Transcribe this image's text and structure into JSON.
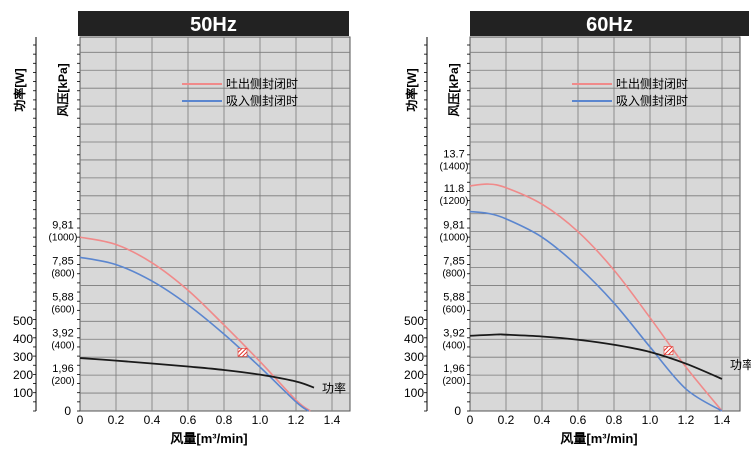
{
  "panels": [
    {
      "header": "50Hz",
      "power_axis_label": "功率[W]",
      "pressure_axis_label": "风压[kPa]",
      "x_axis_label": "风量[m³/min]",
      "power_ticks": [
        "500",
        "400",
        "300",
        "200",
        "100"
      ],
      "pressure_ticks": [
        {
          "v": 9.81,
          "label": "9,81",
          "sub": "(1000)"
        },
        {
          "v": 7.85,
          "label": "7,85",
          "sub": "(800)"
        },
        {
          "v": 5.88,
          "label": "5,88",
          "sub": "(600)"
        },
        {
          "v": 3.92,
          "label": "3,92",
          "sub": "(400)"
        },
        {
          "v": 1.96,
          "label": "1,96",
          "sub": "(200)"
        },
        {
          "v": 0,
          "label": "0",
          "sub": ""
        }
      ],
      "x_ticks": [
        "0",
        "0.2",
        "0.4",
        "0.6",
        "0.8",
        "1.0",
        "1.2",
        "1.4"
      ],
      "legend": {
        "red": "吐出侧封闭时",
        "blue": "吸入侧封闭时"
      },
      "power_label": "功率",
      "colors": {
        "red": "#f08a8a",
        "blue": "#5b86cf",
        "black": "#1a1a1a",
        "header_bg": "#222222",
        "plot_bg": "#d8d8d8"
      }
    },
    {
      "header": "60Hz",
      "power_axis_label": "功率[W]",
      "pressure_axis_label": "风压[kPa]",
      "x_axis_label": "风量[m³/min]",
      "power_ticks": [
        "500",
        "400",
        "300",
        "200",
        "100"
      ],
      "pressure_ticks": [
        {
          "v": 13.7,
          "label": "13.7",
          "sub": "(1400)"
        },
        {
          "v": 11.8,
          "label": "11.8",
          "sub": "(1200)"
        },
        {
          "v": 9.81,
          "label": "9,81",
          "sub": "(1000)"
        },
        {
          "v": 7.85,
          "label": "7,85",
          "sub": "(800)"
        },
        {
          "v": 5.88,
          "label": "5,88",
          "sub": "(600)"
        },
        {
          "v": 3.92,
          "label": "3,92",
          "sub": "(400)"
        },
        {
          "v": 1.96,
          "label": "1,96",
          "sub": "(200)"
        },
        {
          "v": 0,
          "label": "0",
          "sub": ""
        }
      ],
      "x_ticks": [
        "0",
        "0.2",
        "0.4",
        "0.6",
        "0.8",
        "1.0",
        "1.2",
        "1.4"
      ],
      "legend": {
        "red": "吐出侧封闭时",
        "blue": "吸入侧封闭时"
      },
      "power_label": "功率",
      "colors": {
        "red": "#f08a8a",
        "blue": "#5b86cf",
        "black": "#1a1a1a",
        "header_bg": "#222222",
        "plot_bg": "#d8d8d8"
      }
    }
  ],
  "chart_data": [
    {
      "type": "line",
      "title": "50Hz",
      "xlabel": "风量[m³/min]",
      "ylabel": "风压[kPa]",
      "y2label": "功率[W]",
      "xlim": [
        0,
        1.5
      ],
      "ylim": [
        0,
        22.56
      ],
      "grid": true,
      "legend_position": "top-center",
      "series": [
        {
          "name": "吐出侧封闭时",
          "x": [
            0,
            0.2,
            0.4,
            0.6,
            0.8,
            1.0,
            1.2,
            1.28
          ],
          "y": [
            9.5,
            9.1,
            8.1,
            6.6,
            4.7,
            2.7,
            0.6,
            0
          ]
        },
        {
          "name": "吸入侧封闭时",
          "x": [
            0,
            0.2,
            0.4,
            0.6,
            0.8,
            1.0,
            1.2,
            1.27
          ],
          "y": [
            8.4,
            8.0,
            7.1,
            5.8,
            4.2,
            2.4,
            0.5,
            0
          ]
        },
        {
          "name": "功率",
          "axis": "power_W",
          "x": [
            0,
            0.2,
            0.4,
            0.6,
            0.8,
            1.0,
            1.2,
            1.3
          ],
          "y": [
            294,
            280,
            264,
            247,
            228,
            202,
            164,
            130
          ]
        }
      ],
      "markers": [
        {
          "x": 0.9,
          "y": 3.2
        }
      ]
    },
    {
      "type": "line",
      "title": "60Hz",
      "xlabel": "风量[m³/min]",
      "ylabel": "风压[kPa]",
      "y2label": "功率[W]",
      "xlim": [
        0,
        1.5
      ],
      "ylim": [
        0,
        22.56
      ],
      "grid": true,
      "legend_position": "top-center",
      "series": [
        {
          "name": "吐出侧封闭时",
          "x": [
            0,
            0.1,
            0.2,
            0.4,
            0.6,
            0.8,
            1.0,
            1.2,
            1.4
          ],
          "y": [
            12.3,
            12.4,
            12.2,
            11.3,
            9.8,
            7.7,
            5.1,
            2.4,
            0
          ]
        },
        {
          "name": "吸入侧封闭时",
          "x": [
            0,
            0.1,
            0.2,
            0.4,
            0.6,
            0.8,
            1.0,
            1.2,
            1.4
          ],
          "y": [
            10.9,
            10.8,
            10.5,
            9.5,
            7.9,
            5.9,
            3.5,
            1.2,
            0
          ]
        },
        {
          "name": "功率",
          "axis": "power_W",
          "x": [
            0,
            0.15,
            0.2,
            0.4,
            0.6,
            0.8,
            1.0,
            1.2,
            1.4
          ],
          "y": [
            418,
            425,
            424,
            414,
            396,
            368,
            328,
            263,
            178
          ]
        }
      ],
      "markers": [
        {
          "x": 1.1,
          "y": 3.3
        }
      ]
    }
  ]
}
